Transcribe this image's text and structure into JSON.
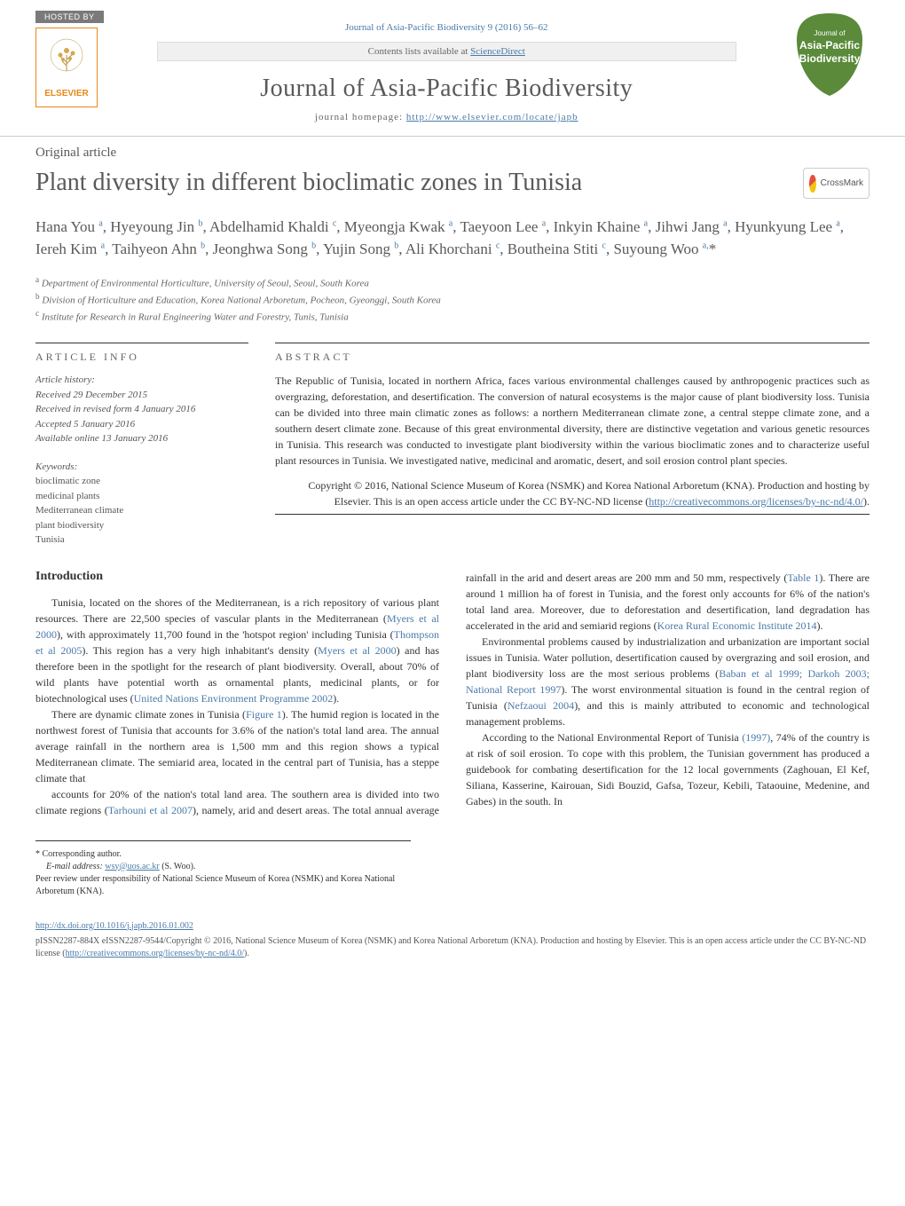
{
  "header": {
    "journal_ref": "Journal of Asia-Pacific Biodiversity 9 (2016) 56–62",
    "hosted_by": "HOSTED BY",
    "elsevier": "ELSEVIER",
    "sciencedirect_prefix": "Contents lists available at ",
    "sciencedirect_link": "ScienceDirect",
    "journal_title": "Journal of Asia-Pacific Biodiversity",
    "homepage_prefix": "journal homepage: ",
    "homepage_url": "http://www.elsevier.com/locate/japb",
    "shield_top": "Journal of",
    "shield_main": "Asia-Pacific",
    "shield_bottom": "Biodiversity"
  },
  "article": {
    "type": "Original article",
    "title": "Plant diversity in different bioclimatic zones in Tunisia",
    "crossmark": "CrossMark"
  },
  "authors_html": "Hana You <sup>a</sup>, Hyeyoung Jin <sup>b</sup>, Abdelhamid Khaldi <sup>c</sup>, Myeongja Kwak <sup>a</sup>, Taeyoon Lee <sup>a</sup>, Inkyin Khaine <sup>a</sup>, Jihwi Jang <sup>a</sup>, Hyunkyung Lee <sup>a</sup>, Iereh Kim <sup>a</sup>, Taihyeon Ahn <sup>b</sup>, Jeonghwa Song <sup>b</sup>, Yujin Song <sup>b</sup>, Ali Khorchani <sup>c</sup>, Boutheina Stiti <sup>c</sup>, Suyoung Woo <sup>a,</sup>*",
  "affiliations": {
    "a": "Department of Environmental Horticulture, University of Seoul, Seoul, South Korea",
    "b": "Division of Horticulture and Education, Korea National Arboretum, Pocheon, Gyeonggi, South Korea",
    "c": "Institute for Research in Rural Engineering Water and Forestry, Tunis, Tunisia"
  },
  "info": {
    "section_label": "ARTICLE INFO",
    "history_label": "Article history:",
    "received": "Received 29 December 2015",
    "revised": "Received in revised form 4 January 2016",
    "accepted": "Accepted 5 January 2016",
    "online": "Available online 13 January 2016",
    "keywords_label": "Keywords:",
    "kw1": "bioclimatic zone",
    "kw2": "medicinal plants",
    "kw3": "Mediterranean climate",
    "kw4": "plant biodiversity",
    "kw5": "Tunisia"
  },
  "abstract": {
    "section_label": "ABSTRACT",
    "text": "The Republic of Tunisia, located in northern Africa, faces various environmental challenges caused by anthropogenic practices such as overgrazing, deforestation, and desertification. The conversion of natural ecosystems is the major cause of plant biodiversity loss. Tunisia can be divided into three main climatic zones as follows: a northern Mediterranean climate zone, a central steppe climate zone, and a southern desert climate zone. Because of this great environmental diversity, there are distinctive vegetation and various genetic resources in Tunisia. This research was conducted to investigate plant biodiversity within the various bioclimatic zones and to characterize useful plant resources in Tunisia. We investigated native, medicinal and aromatic, desert, and soil erosion control plant species.",
    "copyright_prefix": "Copyright © 2016, National Science Museum of Korea (NSMK) and Korea National Arboretum (KNA). Production and hosting by Elsevier. This is an open access article under the CC BY-NC-ND license (",
    "copyright_link": "http://creativecommons.org/licenses/by-nc-nd/4.0/",
    "copyright_suffix": ")."
  },
  "intro": {
    "heading": "Introduction",
    "p1_pre": "Tunisia, located on the shores of the Mediterranean, is a rich repository of various plant resources. There are 22,500 species of vascular plants in the Mediterranean (",
    "p1_ref1": "Myers et al 2000",
    "p1_mid1": "), with approximately 11,700 found in the 'hotspot region' including Tunisia (",
    "p1_ref2": "Thompson et al 2005",
    "p1_mid2": "). This region has a very high inhabitant's density (",
    "p1_ref3": "Myers et al 2000",
    "p1_mid3": ") and has therefore been in the spotlight for the research of plant biodiversity. Overall, about 70% of wild plants have potential worth as ornamental plants, medicinal plants, or for biotechnological uses (",
    "p1_ref4": "United Nations Environment Programme 2002",
    "p1_suf": ").",
    "p2_pre": "There are dynamic climate zones in Tunisia (",
    "p2_ref1": "Figure 1",
    "p2_mid1": "). The humid region is located in the northwest forest of Tunisia that accounts for 3.6% of the nation's total land area. The annual average rainfall in the northern area is 1,500 mm and this region shows a typical Mediterranean climate. The semiarid area, located in the central part of Tunisia, has a steppe climate that ",
    "p3_pre": "accounts for 20% of the nation's total land area. The southern area is divided into two climate regions (",
    "p3_ref1": "Tarhouni et al 2007",
    "p3_mid1": "), namely, arid and desert areas. The total annual average rainfall in the arid and desert areas are 200 mm and 50 mm, respectively (",
    "p3_ref2": "Table 1",
    "p3_mid2": "). There are around 1 million ha of forest in Tunisia, and the forest only accounts for 6% of the nation's total land area. Moreover, due to deforestation and desertification, land degradation has accelerated in the arid and semiarid regions (",
    "p3_ref3": "Korea Rural Economic Institute 2014",
    "p3_suf": ").",
    "p4_pre": "Environmental problems caused by industrialization and urbanization are important social issues in Tunisia. Water pollution, desertification caused by overgrazing and soil erosion, and plant biodiversity loss are the most serious problems (",
    "p4_ref1": "Baban et al 1999; Darkoh 2003; National Report 1997",
    "p4_mid1": "). The worst environmental situation is found in the central region of Tunisia (",
    "p4_ref2": "Nefzaoui 2004",
    "p4_mid2": "), and this is mainly attributed to economic and technological management problems.",
    "p5_pre": "According to the National Environmental Report of Tunisia ",
    "p5_ref1": "(1997)",
    "p5_suf": ", 74% of the country is at risk of soil erosion. To cope with this problem, the Tunisian government has produced a guidebook for combating desertification for the 12 local governments (Zaghouan, El Kef, Siliana, Kasserine, Kairouan, Sidi Bouzid, Gafsa, Tozeur, Kebili, Tataouine, Medenine, and Gabes) in the south. In"
  },
  "footnotes": {
    "corr": "* Corresponding author.",
    "email_label": "E-mail address: ",
    "email": "wsy@uos.ac.kr",
    "email_suffix": " (S. Woo).",
    "peer": "Peer review under responsibility of National Science Museum of Korea (NSMK) and Korea National Arboretum (KNA)."
  },
  "footer": {
    "doi": "http://dx.doi.org/10.1016/j.japb.2016.01.002",
    "issn_pre": "pISSN2287-884X eISSN2287-9544/Copyright © 2016, National Science Museum of Korea (NSMK) and Korea National Arboretum (KNA). Production and hosting by Elsevier. This is an open access article under the CC BY-NC-ND license (",
    "issn_link": "http://creativecommons.org/licenses/by-nc-nd/4.0/",
    "issn_suf": ")."
  }
}
